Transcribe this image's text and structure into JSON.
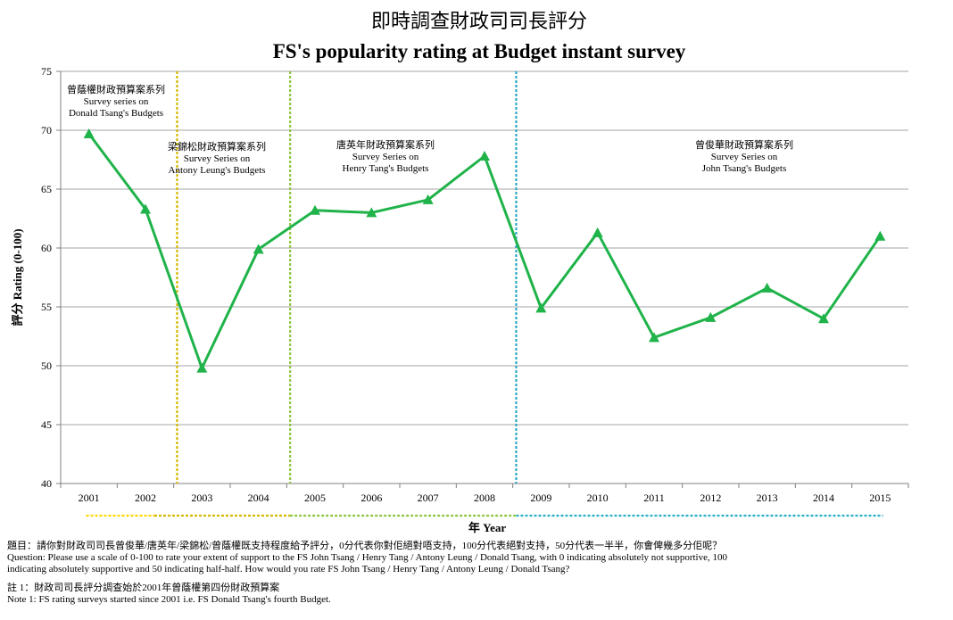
{
  "title_zh": "即時調查財政司司長評分",
  "title_en": "FS's popularity rating at Budget instant survey",
  "chart_data": {
    "type": "line",
    "x": [
      "2001",
      "2002",
      "2003",
      "2004",
      "2005",
      "2006",
      "2007",
      "2008",
      "2009",
      "2010",
      "2011",
      "2012",
      "2013",
      "2014",
      "2015"
    ],
    "series": [
      {
        "values": [
          69.7,
          63.3,
          49.8,
          59.9,
          63.2,
          63.0,
          64.1,
          67.8,
          54.9,
          61.3,
          52.4,
          54.1,
          56.6,
          54.0,
          61.0
        ],
        "color": "#1fb34a"
      }
    ],
    "ylim": [
      40,
      75
    ],
    "yticks": [
      40,
      45,
      50,
      55,
      60,
      65,
      70,
      75
    ],
    "xlabel": "年 Year",
    "ylabel": "評分 Rating (0-100)",
    "grid": true,
    "legend": "none",
    "era_separators": [
      {
        "after_year": "2002",
        "color": "#d4b800"
      },
      {
        "after_year": "2004",
        "color": "#8cc63f"
      },
      {
        "after_year": "2008",
        "color": "#29a9c6"
      }
    ],
    "era_underline_colors": [
      "#ffd700",
      "#d4b800",
      "#8cc63f",
      "#29b0c6"
    ],
    "annotations": [
      {
        "lines": [
          "曾蔭權財政預算案系列",
          "Survey  series on",
          "Donald Tsang's Budgets"
        ]
      },
      {
        "lines": [
          "梁錦松財政預算案系列",
          "Survey Series on",
          "Antony Leung's Budgets"
        ]
      },
      {
        "lines": [
          "唐英年財政預算案系列",
          "Survey Series on",
          "Henry Tang's Budgets"
        ]
      },
      {
        "lines": [
          "曾俊華財政預算案系列",
          "Survey Series on",
          "John Tsang's Budgets"
        ]
      }
    ]
  },
  "notes": {
    "question_zh": "題目：請你對財政司司長曾俊華/唐英年/梁錦松/曾蔭權既支持程度給予評分，0分代表你對佢絕對唔支持，100分代表絕對支持，50分代表一半半，你會俾幾多分佢呢？",
    "question_en_1": "Question: Please use a  scale of 0-100 to rate your extent of support to the FS John Tsang / Henry Tang /  Antony Leung / Donald Tsang, with 0 indicating absolutely not supportive, 100",
    "question_en_2": "indicating absolutely supportive and 50 indicating half-half.  How would you rate FS John Tsang / Henry Tang /  Antony Leung / Donald Tsang?",
    "note_zh": "註 1：財政司司長評分調查始於2001年曾蔭權第四份財政預算案",
    "note_en": "Note 1: FS rating surveys started since 2001 i.e.  FS Donald Tsang's fourth Budget."
  }
}
